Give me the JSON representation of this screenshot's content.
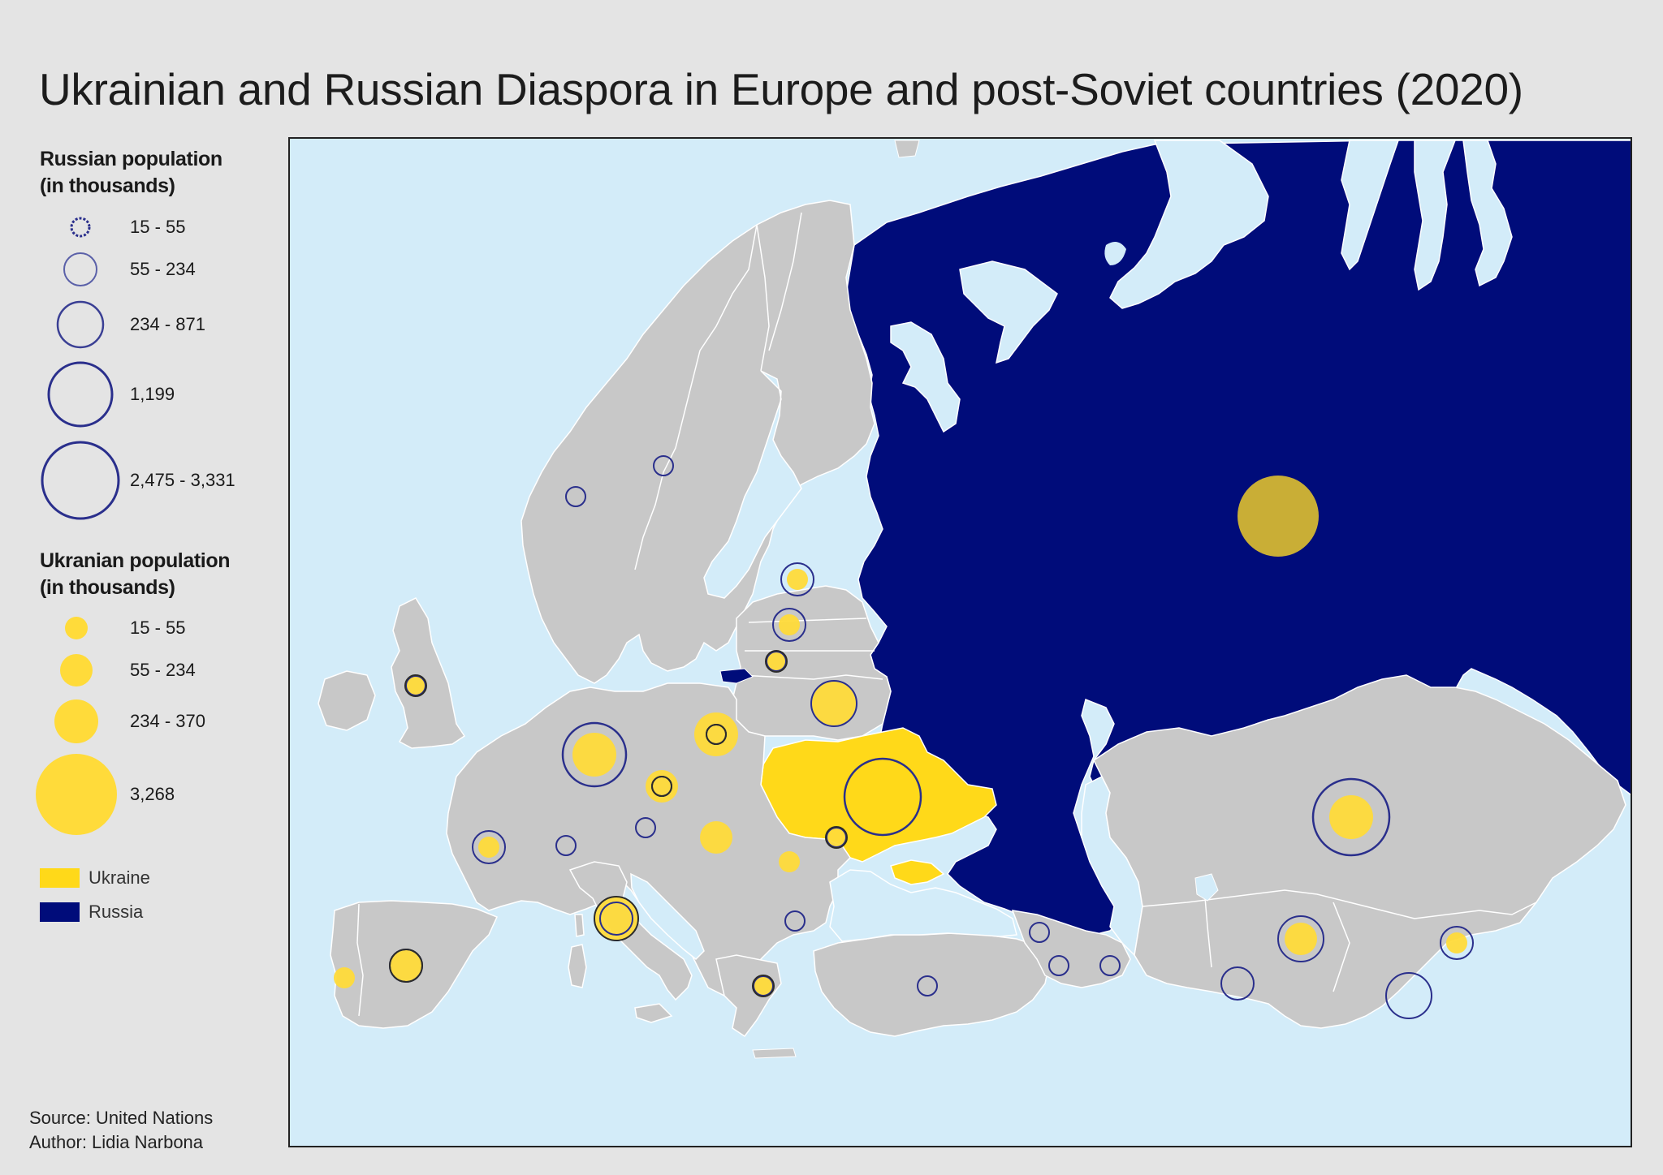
{
  "title": "Ukrainian and Russian Diaspora in Europe and post-Soviet countries (2020)",
  "legend": {
    "russian": {
      "heading_line1": "Russian population",
      "heading_line2": "(in thousands)",
      "classes": [
        "15 - 55",
        "55 - 234",
        "234 - 871",
        "1,199",
        "2,475 - 3,331"
      ]
    },
    "ukrainian": {
      "heading_line1": "Ukranian population",
      "heading_line2": "(in thousands)",
      "classes": [
        "15 - 55",
        "55 - 234",
        "234 - 370",
        "3,268"
      ]
    },
    "areas": [
      {
        "label": "Ukraine",
        "color": "#ffd919"
      },
      {
        "label": "Russia",
        "color": "#000c7a"
      }
    ]
  },
  "footer": {
    "source": "Source: United Nations",
    "author": "Author: Lidia Narbona"
  },
  "colors": {
    "sea": "#d3ecf9",
    "land": "#c8c8c8",
    "ukraine": "#ffd919",
    "russia": "#000c7a",
    "ukr_circle": "#ffdb3a",
    "rus_ring": "#2a2f8c"
  },
  "symbols": {
    "russian_rings": [
      {
        "country": "Norway",
        "class": 0
      },
      {
        "country": "Sweden",
        "class": 0
      },
      {
        "country": "Estonia",
        "class": 1
      },
      {
        "country": "Latvia",
        "class": 1
      },
      {
        "country": "Belarus",
        "class": 2
      },
      {
        "country": "Germany",
        "class": 3
      },
      {
        "country": "Ukraine",
        "class": 4
      },
      {
        "country": "Kazakhstan",
        "class": 4
      },
      {
        "country": "Uzbekistan",
        "class": 2
      },
      {
        "country": "Kyrgyzstan",
        "class": 1
      },
      {
        "country": "Tajikistan",
        "class": 2
      },
      {
        "country": "Turkmenistan",
        "class": 1
      },
      {
        "country": "France",
        "class": 1
      },
      {
        "country": "Czechia",
        "class": 0
      },
      {
        "country": "Poland",
        "class": 0
      },
      {
        "country": "Austria",
        "class": 0
      },
      {
        "country": "Switzerland",
        "class": 0
      },
      {
        "country": "Turkey",
        "class": 0
      },
      {
        "country": "Georgia",
        "class": 0
      },
      {
        "country": "Armenia",
        "class": 0
      },
      {
        "country": "Azerbaijan",
        "class": 0
      },
      {
        "country": "Bulgaria",
        "class": 0
      },
      {
        "country": "Moldova",
        "class": 0
      },
      {
        "country": "Italy",
        "class": 1
      },
      {
        "country": "Spain",
        "class": 1
      },
      {
        "country": "UK",
        "class": 0
      },
      {
        "country": "Lithuania",
        "class": 0
      },
      {
        "country": "Greece",
        "class": 0
      }
    ],
    "ukrainian_circles": [
      {
        "country": "Russia",
        "class": 3
      },
      {
        "country": "Kazakhstan",
        "class": 2
      },
      {
        "country": "Uzbekistan",
        "class": 1
      },
      {
        "country": "Kyrgyzstan",
        "class": 0
      },
      {
        "country": "Belarus",
        "class": 2
      },
      {
        "country": "Germany",
        "class": 2
      },
      {
        "country": "Poland",
        "class": 2
      },
      {
        "country": "Czechia",
        "class": 1
      },
      {
        "country": "Italy",
        "class": 2
      },
      {
        "country": "Spain",
        "class": 1
      },
      {
        "country": "Portugal",
        "class": 0
      },
      {
        "country": "France",
        "class": 0
      },
      {
        "country": "Hungary",
        "class": 1
      },
      {
        "country": "Romania",
        "class": 0
      },
      {
        "country": "Moldova",
        "class": 0
      },
      {
        "country": "Estonia",
        "class": 0
      },
      {
        "country": "Latvia",
        "class": 0
      },
      {
        "country": "Lithuania",
        "class": 0
      },
      {
        "country": "UK",
        "class": 0
      },
      {
        "country": "Greece",
        "class": 0
      }
    ]
  }
}
